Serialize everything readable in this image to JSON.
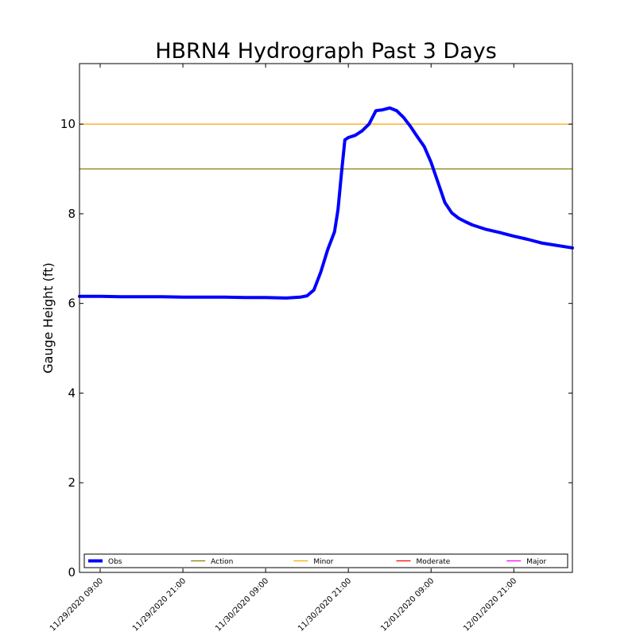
{
  "chart_data": {
    "type": "line",
    "title": "HBRN4 Hydrograph Past 3 Days",
    "xlabel": "",
    "ylabel": "Gauge Height (ft)",
    "xlim": [
      "11/29/2020 06:00",
      "12/02/2020 05:30"
    ],
    "ylim": [
      0,
      11.35
    ],
    "yticks": [
      0,
      2,
      4,
      6,
      8,
      10
    ],
    "xticks": [
      "11/29/2020 09:00",
      "11/29/2020 21:00",
      "11/30/2020 09:00",
      "11/30/2020 21:00",
      "12/01/2020 09:00",
      "12/01/2020 21:00"
    ],
    "grid": false,
    "legend_position": "bottom",
    "series": [
      {
        "name": "Obs",
        "color": "#0000ff",
        "x": [
          "11/29/2020 06:00",
          "11/29/2020 09:00",
          "11/29/2020 12:00",
          "11/29/2020 15:00",
          "11/29/2020 18:00",
          "11/29/2020 21:00",
          "11/30/2020 00:00",
          "11/30/2020 03:00",
          "11/30/2020 06:00",
          "11/30/2020 09:00",
          "11/30/2020 12:00",
          "11/30/2020 14:00",
          "11/30/2020 15:00",
          "11/30/2020 16:00",
          "11/30/2020 17:00",
          "11/30/2020 18:00",
          "11/30/2020 19:00",
          "11/30/2020 19:30",
          "11/30/2020 20:00",
          "11/30/2020 20:30",
          "11/30/2020 21:00",
          "11/30/2020 22:00",
          "11/30/2020 23:00",
          "12/01/2020 00:00",
          "12/01/2020 01:00",
          "12/01/2020 02:00",
          "12/01/2020 03:00",
          "12/01/2020 04:00",
          "12/01/2020 05:00",
          "12/01/2020 06:00",
          "12/01/2020 07:00",
          "12/01/2020 08:00",
          "12/01/2020 09:00",
          "12/01/2020 10:00",
          "12/01/2020 11:00",
          "12/01/2020 12:00",
          "12/01/2020 13:00",
          "12/01/2020 14:00",
          "12/01/2020 15:00",
          "12/01/2020 17:00",
          "12/01/2020 19:00",
          "12/01/2020 21:00",
          "12/01/2020 23:00",
          "12/02/2020 01:00",
          "12/02/2020 03:00",
          "12/02/2020 05:30"
        ],
        "y": [
          6.16,
          6.16,
          6.15,
          6.15,
          6.15,
          6.14,
          6.14,
          6.14,
          6.13,
          6.13,
          6.12,
          6.14,
          6.17,
          6.3,
          6.7,
          7.2,
          7.6,
          8.1,
          8.9,
          9.65,
          9.7,
          9.75,
          9.85,
          10.0,
          10.3,
          10.32,
          10.36,
          10.3,
          10.15,
          9.95,
          9.72,
          9.5,
          9.15,
          8.7,
          8.25,
          8.02,
          7.9,
          7.82,
          7.75,
          7.65,
          7.58,
          7.5,
          7.43,
          7.35,
          7.3,
          7.24
        ]
      }
    ],
    "thresholds": [
      {
        "name": "Action",
        "value": 9,
        "color": "#808000"
      },
      {
        "name": "Minor",
        "value": 10,
        "color": "#ffa500"
      },
      {
        "name": "Moderate",
        "value": null,
        "color": "#ff0000"
      },
      {
        "name": "Major",
        "value": null,
        "color": "#ff00ff"
      }
    ],
    "legend": [
      "Obs",
      "Action",
      "Minor",
      "Moderate",
      "Major"
    ]
  }
}
